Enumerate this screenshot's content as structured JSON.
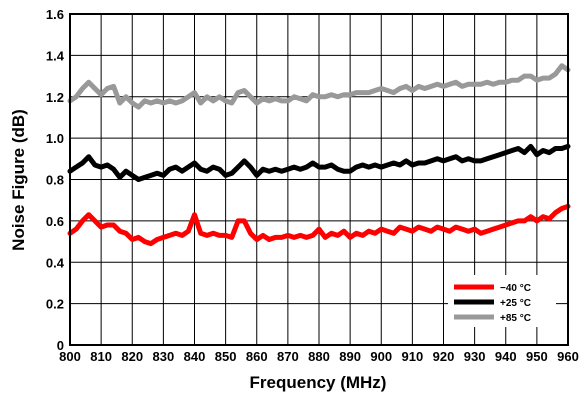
{
  "chart_data": {
    "type": "line",
    "xlabel": "Frequency (MHz)",
    "ylabel": "Noise Figure (dB)",
    "xlim": [
      800,
      960
    ],
    "ylim": [
      0,
      1.6
    ],
    "xticks": [
      "800",
      "810",
      "820",
      "830",
      "840",
      "850",
      "860",
      "870",
      "880",
      "890",
      "900",
      "910",
      "920",
      "930",
      "940",
      "950",
      "960"
    ],
    "yticks": [
      "0",
      "0.2",
      "0.4",
      "0.6",
      "0.8",
      "1.0",
      "1.2",
      "1.4",
      "1.6"
    ],
    "grid": true,
    "legend_position": "bottom-right",
    "series": [
      {
        "name": "−40 °C",
        "color": "#ff0000",
        "x": [
          800,
          802,
          804,
          806,
          808,
          810,
          812,
          814,
          816,
          818,
          820,
          822,
          824,
          826,
          828,
          830,
          832,
          834,
          836,
          838,
          840,
          842,
          844,
          846,
          848,
          850,
          852,
          854,
          856,
          858,
          860,
          862,
          864,
          866,
          868,
          870,
          872,
          874,
          876,
          878,
          880,
          882,
          884,
          886,
          888,
          890,
          892,
          894,
          896,
          898,
          900,
          902,
          904,
          906,
          908,
          910,
          912,
          914,
          916,
          918,
          920,
          922,
          924,
          926,
          928,
          930,
          932,
          934,
          936,
          938,
          940,
          942,
          944,
          946,
          948,
          950,
          952,
          954,
          956,
          958,
          960
        ],
        "y": [
          0.54,
          0.56,
          0.6,
          0.63,
          0.6,
          0.57,
          0.58,
          0.58,
          0.55,
          0.54,
          0.51,
          0.52,
          0.5,
          0.49,
          0.51,
          0.52,
          0.53,
          0.54,
          0.53,
          0.55,
          0.63,
          0.54,
          0.53,
          0.54,
          0.53,
          0.53,
          0.52,
          0.6,
          0.6,
          0.54,
          0.51,
          0.53,
          0.51,
          0.52,
          0.52,
          0.53,
          0.52,
          0.53,
          0.52,
          0.53,
          0.56,
          0.52,
          0.54,
          0.53,
          0.55,
          0.52,
          0.54,
          0.53,
          0.55,
          0.54,
          0.56,
          0.55,
          0.54,
          0.57,
          0.56,
          0.55,
          0.57,
          0.56,
          0.55,
          0.57,
          0.56,
          0.55,
          0.57,
          0.56,
          0.55,
          0.56,
          0.54,
          0.55,
          0.56,
          0.57,
          0.58,
          0.59,
          0.6,
          0.6,
          0.62,
          0.6,
          0.62,
          0.61,
          0.64,
          0.66,
          0.67
        ]
      },
      {
        "name": "+25 °C",
        "color": "#000000",
        "x": [
          800,
          802,
          804,
          806,
          808,
          810,
          812,
          814,
          816,
          818,
          820,
          822,
          824,
          826,
          828,
          830,
          832,
          834,
          836,
          838,
          840,
          842,
          844,
          846,
          848,
          850,
          852,
          854,
          856,
          858,
          860,
          862,
          864,
          866,
          868,
          870,
          872,
          874,
          876,
          878,
          880,
          882,
          884,
          886,
          888,
          890,
          892,
          894,
          896,
          898,
          900,
          902,
          904,
          906,
          908,
          910,
          912,
          914,
          916,
          918,
          920,
          922,
          924,
          926,
          928,
          930,
          932,
          934,
          936,
          938,
          940,
          942,
          944,
          946,
          948,
          950,
          952,
          954,
          956,
          958,
          960
        ],
        "y": [
          0.84,
          0.86,
          0.88,
          0.91,
          0.87,
          0.86,
          0.87,
          0.85,
          0.81,
          0.84,
          0.82,
          0.8,
          0.81,
          0.82,
          0.83,
          0.82,
          0.85,
          0.86,
          0.84,
          0.86,
          0.88,
          0.85,
          0.84,
          0.86,
          0.85,
          0.82,
          0.83,
          0.86,
          0.89,
          0.86,
          0.82,
          0.85,
          0.84,
          0.85,
          0.84,
          0.85,
          0.86,
          0.85,
          0.86,
          0.88,
          0.86,
          0.86,
          0.87,
          0.85,
          0.84,
          0.84,
          0.86,
          0.87,
          0.86,
          0.87,
          0.86,
          0.87,
          0.88,
          0.87,
          0.89,
          0.87,
          0.88,
          0.88,
          0.89,
          0.9,
          0.89,
          0.9,
          0.91,
          0.89,
          0.9,
          0.89,
          0.89,
          0.9,
          0.91,
          0.92,
          0.93,
          0.94,
          0.95,
          0.93,
          0.96,
          0.92,
          0.94,
          0.93,
          0.95,
          0.95,
          0.96
        ]
      },
      {
        "name": "+85 °C",
        "color": "#999999",
        "x": [
          800,
          802,
          804,
          806,
          808,
          810,
          812,
          814,
          816,
          818,
          820,
          822,
          824,
          826,
          828,
          830,
          832,
          834,
          836,
          838,
          840,
          842,
          844,
          846,
          848,
          850,
          852,
          854,
          856,
          858,
          860,
          862,
          864,
          866,
          868,
          870,
          872,
          874,
          876,
          878,
          880,
          882,
          884,
          886,
          888,
          890,
          892,
          894,
          896,
          898,
          900,
          902,
          904,
          906,
          908,
          910,
          912,
          914,
          916,
          918,
          920,
          922,
          924,
          926,
          928,
          930,
          932,
          934,
          936,
          938,
          940,
          942,
          944,
          946,
          948,
          950,
          952,
          954,
          956,
          958,
          960
        ],
        "y": [
          1.18,
          1.2,
          1.24,
          1.27,
          1.24,
          1.21,
          1.24,
          1.25,
          1.17,
          1.2,
          1.17,
          1.15,
          1.18,
          1.17,
          1.18,
          1.17,
          1.18,
          1.17,
          1.18,
          1.2,
          1.22,
          1.17,
          1.2,
          1.18,
          1.2,
          1.18,
          1.17,
          1.22,
          1.23,
          1.2,
          1.17,
          1.19,
          1.18,
          1.19,
          1.18,
          1.18,
          1.2,
          1.19,
          1.18,
          1.21,
          1.2,
          1.2,
          1.21,
          1.2,
          1.21,
          1.21,
          1.22,
          1.22,
          1.22,
          1.23,
          1.24,
          1.23,
          1.22,
          1.24,
          1.25,
          1.23,
          1.25,
          1.24,
          1.25,
          1.26,
          1.25,
          1.26,
          1.27,
          1.25,
          1.26,
          1.26,
          1.26,
          1.27,
          1.26,
          1.27,
          1.27,
          1.28,
          1.28,
          1.3,
          1.3,
          1.28,
          1.29,
          1.29,
          1.31,
          1.35,
          1.33
        ]
      }
    ]
  }
}
